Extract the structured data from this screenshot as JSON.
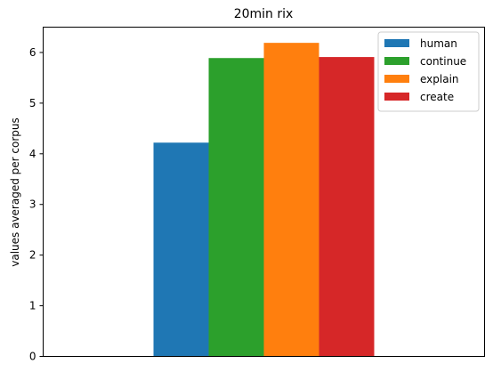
{
  "chart_data": {
    "type": "bar",
    "title": "20min rix",
    "xlabel": "",
    "ylabel": "values averaged per corpus",
    "categories": [
      ""
    ],
    "series": [
      {
        "name": "human",
        "values": [
          4.22
        ],
        "color": "#1f77b4"
      },
      {
        "name": "continue",
        "values": [
          5.89
        ],
        "color": "#2ca02c"
      },
      {
        "name": "explain",
        "values": [
          6.19
        ],
        "color": "#ff7f0e"
      },
      {
        "name": "create",
        "values": [
          5.91
        ],
        "color": "#d62728"
      }
    ],
    "ylim": [
      0,
      6.5
    ],
    "yticks": [
      "0",
      "1",
      "2",
      "3",
      "4",
      "5",
      "6"
    ],
    "grid": false,
    "legend": "top-right"
  }
}
